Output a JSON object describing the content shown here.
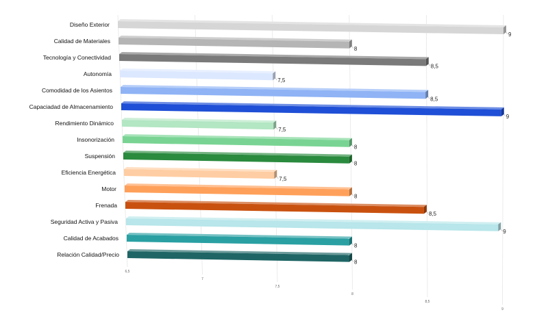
{
  "chart_data": {
    "type": "bar",
    "orientation": "horizontal",
    "style": "3d",
    "title": "",
    "xlabel": "",
    "ylabel": "",
    "xlim": [
      6.5,
      9
    ],
    "grid": true,
    "x_ticks": [
      "6,5",
      "7",
      "7,5",
      "8",
      "8,5",
      "9"
    ],
    "categories": [
      "Diseño Exterior",
      "Calidad de Materiales",
      "Tecnología y Conectividad",
      "Autonomía",
      "Comodidad de los Asientos",
      "Capaciadad de Almacenamiento",
      "Rendimiento Dinámico",
      "Insonorización",
      "Suspensión",
      "Eficiencia Energética",
      "Motor",
      "Frenada",
      "Seguridad Activa y Pasiva",
      "Calidad de Acabados",
      "Relación Calidad/Precio"
    ],
    "values": [
      9,
      8,
      8.5,
      7.5,
      8.5,
      9,
      7.5,
      8,
      8,
      7.5,
      8,
      8.5,
      9,
      8,
      8
    ],
    "value_labels": [
      "9",
      "8",
      "8,5",
      "7,5",
      "8,5",
      "9",
      "7,5",
      "8",
      "8",
      "7,5",
      "8",
      "8,5",
      "9",
      "8",
      "8"
    ],
    "colors": [
      "#d6d6d6",
      "#b5b5b5",
      "#7a7a7a",
      "#dce8ff",
      "#8fb3f5",
      "#1f4fd6",
      "#b3e6c3",
      "#79d493",
      "#2a8a3e",
      "#ffcda3",
      "#ffa05a",
      "#c9510f",
      "#b8e6ea",
      "#2aa0a3",
      "#1f6565"
    ]
  }
}
